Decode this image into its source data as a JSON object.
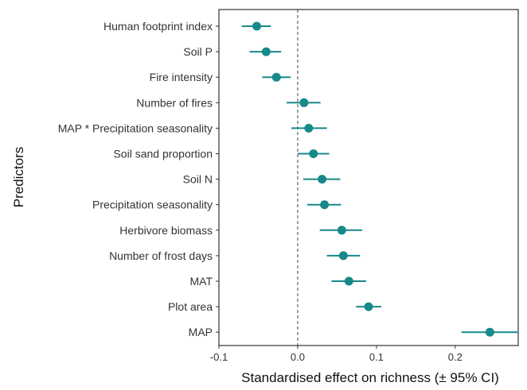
{
  "chart_data": {
    "type": "scatter",
    "subtype": "forest-plot",
    "xlabel": "Standardised effect on richness (± 95% CI)",
    "ylabel": "Predictors",
    "xlim": [
      -0.1,
      0.28
    ],
    "xticks": [
      -0.1,
      0,
      0.1,
      0.2
    ],
    "xtick_labels": [
      "-0.1",
      "0.0",
      "0.1",
      "0.2"
    ],
    "reference_line": 0,
    "grid": false,
    "point_color": "#17898a",
    "categories": [
      "Human footprint index",
      "Soil P",
      "Fire intensity",
      "Number of fires",
      "MAP * Precipitation seasonality",
      "Soil sand proportion",
      "Soil N",
      "Precipitation seasonality",
      "Herbivore biomass",
      "Number of frost days",
      "MAT",
      "Plot area",
      "MAP"
    ],
    "estimates": [
      -0.052,
      -0.04,
      -0.027,
      0.008,
      0.014,
      0.02,
      0.031,
      0.034,
      0.056,
      0.058,
      0.065,
      0.09,
      0.244
    ],
    "ci_low": [
      -0.071,
      -0.061,
      -0.045,
      -0.014,
      -0.008,
      0.0,
      0.007,
      0.012,
      0.028,
      0.037,
      0.043,
      0.074,
      0.208
    ],
    "ci_high": [
      -0.034,
      -0.021,
      -0.009,
      0.029,
      0.037,
      0.04,
      0.054,
      0.055,
      0.082,
      0.079,
      0.087,
      0.106,
      0.279
    ]
  }
}
